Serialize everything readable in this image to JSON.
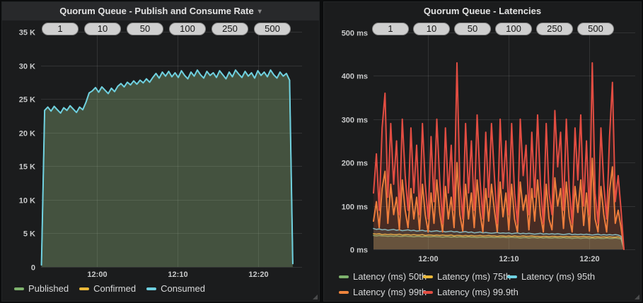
{
  "panels": [
    {
      "title": "Quorum Queue - Publish and Consume Rate",
      "has_menu_caret": true,
      "caret_glyph": "▾",
      "pills": [
        "1",
        "10",
        "50",
        "100",
        "250",
        "500"
      ],
      "legend": [
        {
          "label": "Published",
          "color": "#7EB26D"
        },
        {
          "label": "Confirmed",
          "color": "#EAB839"
        },
        {
          "label": "Consumed",
          "color": "#6ED0E0"
        }
      ]
    },
    {
      "title": "Quorum Queue - Latencies",
      "has_menu_caret": false,
      "pills": [
        "1",
        "10",
        "50",
        "100",
        "250",
        "500"
      ],
      "legend": [
        {
          "label": "Latency (ms) 50th",
          "color": "#7EB26D"
        },
        {
          "label": "Latency (ms) 75th",
          "color": "#EAB839"
        },
        {
          "label": "Latency (ms) 95th",
          "color": "#6ED0E0"
        },
        {
          "label": "Latency (ms) 99th",
          "color": "#EF843C"
        },
        {
          "label": "Latency (ms) 99.9th",
          "color": "#E24D42"
        }
      ]
    }
  ],
  "chart_data": [
    {
      "type": "area",
      "title": "Quorum Queue - Publish and Consume Rate",
      "x_unit": "time (minutes after 11:50)",
      "y_unit": "messages/s",
      "ylim": [
        0,
        35000
      ],
      "fill_opacity": 0.13,
      "grid": true,
      "x_min": 3.0,
      "x_max": 35.5,
      "t_start": 3.05,
      "t_end": 34.35,
      "y_ticks": [
        {
          "v": 0,
          "label": "0"
        },
        {
          "v": 5000,
          "label": "5 K"
        },
        {
          "v": 10000,
          "label": "10 K"
        },
        {
          "v": 15000,
          "label": "15 K"
        },
        {
          "v": 20000,
          "label": "20 K"
        },
        {
          "v": 25000,
          "label": "25 K"
        },
        {
          "v": 30000,
          "label": "30 K"
        },
        {
          "v": 35000,
          "label": "35 K"
        }
      ],
      "x_ticks": [
        {
          "t": 10,
          "label": "12:00"
        },
        {
          "t": 20,
          "label": "12:10"
        },
        {
          "t": 30,
          "label": "12:20"
        }
      ],
      "series": [
        {
          "name": "Published",
          "color": "#7EB26D",
          "width": 1.5,
          "values": [
            300,
            23300,
            23800,
            23200,
            23900,
            23400,
            22900,
            23700,
            23300,
            24000,
            23500,
            23000,
            23800,
            23400,
            24500,
            25900,
            26200,
            26700,
            26000,
            26800,
            26300,
            25800,
            26600,
            26100,
            26900,
            27300,
            26800,
            27500,
            27100,
            27700,
            27200,
            27800,
            27400,
            28000,
            27500,
            28200,
            28800,
            28100,
            29000,
            28400,
            29100,
            28300,
            28900,
            28200,
            29200,
            28500,
            28000,
            29000,
            28400,
            29300,
            28600,
            28100,
            29100,
            28500,
            28900,
            28200,
            29200,
            28600,
            28000,
            29000,
            28300,
            29300,
            28700,
            28200,
            29100,
            28400,
            28900,
            28100,
            29200,
            28500,
            29000,
            28300,
            29300,
            28600,
            28100,
            29000,
            28400,
            28800,
            27800,
            500
          ]
        },
        {
          "name": "Confirmed",
          "color": "#EAB839",
          "width": 1.5,
          "values": [
            300,
            23300,
            23800,
            23200,
            23900,
            23400,
            22900,
            23700,
            23300,
            24000,
            23500,
            23000,
            23800,
            23400,
            24500,
            25900,
            26200,
            26700,
            26000,
            26800,
            26300,
            25800,
            26600,
            26100,
            26900,
            27300,
            26800,
            27500,
            27100,
            27700,
            27200,
            27800,
            27400,
            28000,
            27500,
            28200,
            28800,
            28100,
            29000,
            28400,
            29100,
            28300,
            28900,
            28200,
            29200,
            28500,
            28000,
            29000,
            28400,
            29300,
            28600,
            28100,
            29100,
            28500,
            28900,
            28200,
            29200,
            28600,
            28000,
            29000,
            28300,
            29300,
            28700,
            28200,
            29100,
            28400,
            28900,
            28100,
            29200,
            28500,
            29000,
            28300,
            29300,
            28600,
            28100,
            29000,
            28400,
            28800,
            27800,
            500
          ]
        },
        {
          "name": "Consumed",
          "color": "#6ED0E0",
          "width": 2,
          "values": [
            300,
            23300,
            23800,
            23200,
            23900,
            23400,
            22900,
            23700,
            23300,
            24000,
            23500,
            23000,
            23800,
            23400,
            24500,
            25900,
            26200,
            26700,
            26000,
            26800,
            26300,
            25800,
            26600,
            26100,
            26900,
            27300,
            26800,
            27500,
            27100,
            27700,
            27200,
            27800,
            27400,
            28000,
            27500,
            28200,
            28800,
            28100,
            29000,
            28400,
            29100,
            28300,
            28900,
            28200,
            29200,
            28500,
            28000,
            29000,
            28400,
            29300,
            28600,
            28100,
            29100,
            28500,
            28900,
            28200,
            29200,
            28600,
            28000,
            29000,
            28300,
            29300,
            28700,
            28200,
            29100,
            28400,
            28900,
            28100,
            29200,
            28500,
            29000,
            28300,
            29300,
            28600,
            28100,
            29000,
            28400,
            28800,
            27800,
            500
          ]
        }
      ]
    },
    {
      "type": "area",
      "title": "Quorum Queue - Latencies",
      "x_unit": "time (minutes after 11:50)",
      "y_unit": "ms",
      "ylim": [
        0,
        500
      ],
      "fill_opacity": 0.12,
      "grid": true,
      "x_min": 3.25,
      "x_max": 35.7,
      "t_start": 3.25,
      "t_end": 34.3,
      "y_ticks": [
        {
          "v": 0,
          "label": "0 ms"
        },
        {
          "v": 100,
          "label": "100 ms"
        },
        {
          "v": 200,
          "label": "200 ms"
        },
        {
          "v": 300,
          "label": "300 ms"
        },
        {
          "v": 400,
          "label": "400 ms"
        },
        {
          "v": 500,
          "label": "500 ms"
        }
      ],
      "x_ticks": [
        {
          "t": 10,
          "label": "12:00"
        },
        {
          "t": 20,
          "label": "12:10"
        },
        {
          "t": 30,
          "label": "12:20"
        }
      ],
      "series": [
        {
          "name": "Latency (ms) 50th",
          "color": "#7EB26D",
          "width": 1.5,
          "values": [
            32,
            31,
            32,
            31,
            31,
            30,
            31,
            30,
            31,
            30,
            30,
            31,
            30,
            30,
            29,
            30,
            30,
            29,
            30,
            29,
            29,
            30,
            29,
            29,
            28,
            29,
            29,
            28,
            29,
            28,
            29,
            28,
            28,
            29,
            28,
            28,
            27,
            28,
            28,
            27,
            28,
            28,
            27,
            28,
            27,
            28,
            27,
            27,
            28,
            27,
            27,
            26,
            27,
            27,
            26,
            27,
            27,
            26,
            27,
            26,
            27,
            26,
            26,
            27,
            26,
            26,
            27,
            26,
            26,
            25,
            26,
            26,
            25,
            26,
            26,
            25,
            26,
            25,
            26,
            25,
            25,
            26,
            25,
            25,
            26,
            25,
            24,
            0
          ]
        },
        {
          "name": "Latency (ms) 75th",
          "color": "#EAB839",
          "width": 1.5,
          "values": [
            36,
            35,
            36,
            34,
            35,
            34,
            35,
            34,
            34,
            35,
            33,
            34,
            34,
            33,
            34,
            33,
            33,
            34,
            32,
            33,
            33,
            32,
            33,
            32,
            33,
            32,
            32,
            33,
            31,
            32,
            32,
            31,
            32,
            31,
            32,
            31,
            31,
            32,
            31,
            31,
            32,
            31,
            31,
            30,
            31,
            31,
            30,
            31,
            30,
            31,
            30,
            30,
            31,
            30,
            30,
            31,
            30,
            30,
            29,
            30,
            30,
            29,
            30,
            30,
            29,
            30,
            29,
            30,
            29,
            29,
            30,
            29,
            29,
            30,
            29,
            29,
            28,
            29,
            29,
            28,
            29,
            28,
            29,
            28,
            28,
            29,
            26,
            0
          ]
        },
        {
          "name": "Latency (ms) 95th",
          "color": "#6ED0E0",
          "width": 1.5,
          "values": [
            48,
            46,
            47,
            45,
            46,
            44,
            45,
            46,
            44,
            45,
            43,
            44,
            45,
            43,
            44,
            42,
            43,
            44,
            42,
            43,
            41,
            42,
            43,
            41,
            42,
            40,
            41,
            42,
            40,
            41,
            39,
            40,
            41,
            39,
            40,
            38,
            39,
            40,
            38,
            39,
            38,
            37,
            38,
            39,
            37,
            38,
            37,
            38,
            36,
            37,
            38,
            36,
            37,
            36,
            37,
            36,
            35,
            36,
            37,
            35,
            36,
            35,
            36,
            35,
            36,
            35,
            34,
            35,
            36,
            34,
            35,
            34,
            35,
            34,
            35,
            34,
            33,
            34,
            35,
            33,
            34,
            33,
            34,
            33,
            34,
            33,
            30,
            0
          ]
        },
        {
          "name": "Latency (ms) 99th",
          "color": "#EF843C",
          "width": 2,
          "values": [
            65,
            110,
            50,
            140,
            180,
            60,
            150,
            80,
            120,
            45,
            160,
            90,
            50,
            140,
            70,
            120,
            45,
            150,
            80,
            40,
            130,
            60,
            160,
            85,
            40,
            145,
            70,
            120,
            50,
            200,
            80,
            42,
            150,
            70,
            130,
            50,
            160,
            85,
            40,
            140,
            65,
            150,
            90,
            40,
            155,
            75,
            130,
            45,
            150,
            70,
            40,
            155,
            90,
            125,
            45,
            140,
            65,
            160,
            80,
            40,
            150,
            70,
            45,
            165,
            100,
            140,
            48,
            155,
            75,
            40,
            145,
            85,
            160,
            55,
            130,
            42,
            210,
            70,
            40,
            145,
            80,
            40,
            135,
            190,
            60,
            90,
            50,
            0
          ]
        },
        {
          "name": "Latency (ms) 99.9th",
          "color": "#E24D42",
          "width": 2,
          "values": [
            130,
            220,
            90,
            280,
            360,
            120,
            290,
            150,
            250,
            80,
            300,
            170,
            90,
            280,
            130,
            240,
            80,
            290,
            150,
            70,
            260,
            110,
            300,
            160,
            60,
            280,
            130,
            240,
            90,
            430,
            150,
            70,
            290,
            130,
            250,
            90,
            310,
            160,
            70,
            270,
            120,
            290,
            170,
            60,
            300,
            140,
            250,
            80,
            290,
            130,
            60,
            300,
            170,
            240,
            80,
            270,
            120,
            310,
            150,
            60,
            290,
            130,
            80,
            320,
            190,
            270,
            90,
            300,
            140,
            60,
            280,
            160,
            310,
            100,
            250,
            80,
            430,
            130,
            60,
            280,
            150,
            70,
            260,
            385,
            110,
            170,
            90,
            0
          ]
        }
      ]
    }
  ]
}
